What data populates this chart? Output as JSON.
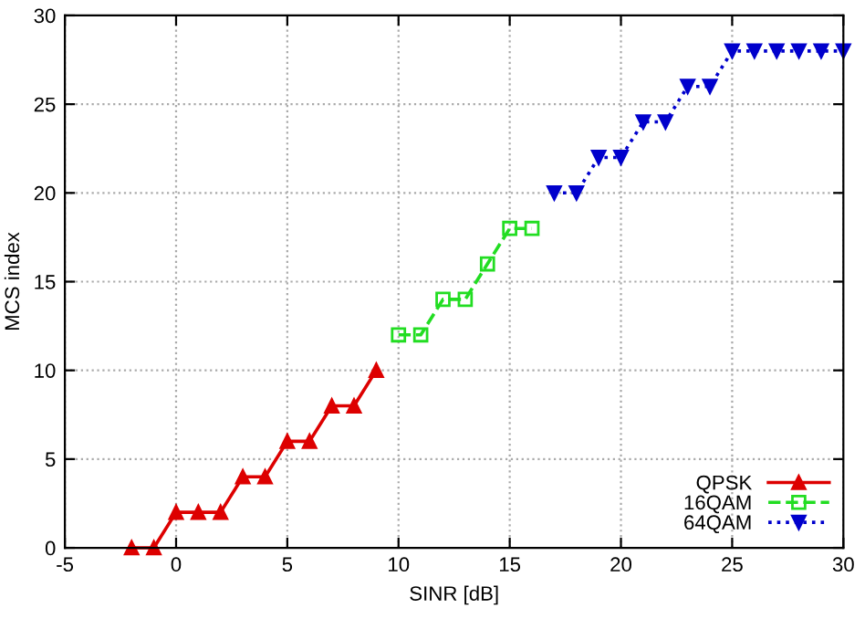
{
  "chart_data": {
    "type": "line",
    "xlabel": "SINR [dB]",
    "ylabel": "MCS index",
    "xlim": [
      -5,
      30
    ],
    "xticks": [
      -5,
      0,
      5,
      10,
      15,
      20,
      25,
      30
    ],
    "ylim": [
      0,
      30
    ],
    "yticks": [
      0,
      5,
      10,
      15,
      20,
      25,
      30
    ],
    "grid": true,
    "legend": "bottom right",
    "series": [
      {
        "name": "QPSK",
        "color": "#dd0000",
        "marker": "triangle",
        "line_style": "solid",
        "x": [
          -2,
          -1,
          0,
          1,
          2,
          3,
          4,
          5,
          6,
          7,
          8,
          9
        ],
        "values": [
          0,
          0,
          2,
          2,
          2,
          4,
          4,
          6,
          6,
          8,
          8,
          10
        ]
      },
      {
        "name": "16QAM",
        "color": "#22dd22",
        "marker": "square",
        "line_style": "dashed",
        "x": [
          10,
          11,
          12,
          13,
          14,
          15,
          16
        ],
        "values": [
          12,
          12,
          14,
          14,
          16,
          18,
          18
        ]
      },
      {
        "name": "64QAM",
        "color": "#0000cc",
        "marker": "triangle_down",
        "line_style": "dotted",
        "x": [
          17,
          18,
          19,
          20,
          21,
          22,
          23,
          24,
          25,
          26,
          27,
          28,
          29,
          30
        ],
        "values": [
          20,
          20,
          22,
          22,
          24,
          24,
          26,
          26,
          28,
          28,
          28,
          28,
          28,
          28
        ]
      }
    ]
  }
}
